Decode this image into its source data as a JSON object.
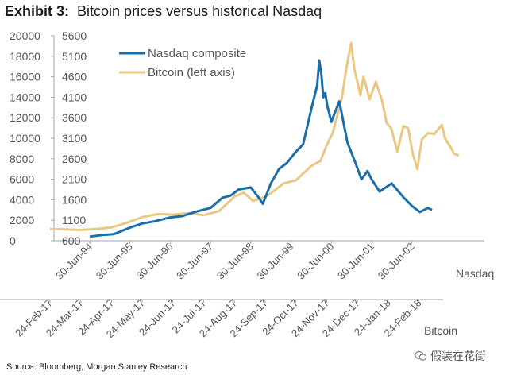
{
  "header": {
    "exhibit_label": "Exhibit 3:",
    "title": "Bitcoin prices versus historical Nasdaq"
  },
  "footer": {
    "source": "Source: Bloomberg, Morgan Stanley Research",
    "watermark": "假装在花街"
  },
  "colors": {
    "nasdaq": "#1b6fa8",
    "bitcoin": "#e8c882",
    "axis": "#a6a6a6",
    "text": "#555555"
  },
  "chart_data": {
    "type": "line",
    "title": "Bitcoin prices versus historical Nasdaq",
    "left_axis": {
      "ticks": [
        0,
        2000,
        4000,
        6000,
        8000,
        10000,
        12000,
        14000,
        16000,
        18000,
        20000
      ],
      "range": [
        0,
        20000
      ],
      "series": "Bitcoin"
    },
    "right_axis": {
      "ticks": [
        600,
        1100,
        1600,
        2100,
        2600,
        3100,
        3600,
        4100,
        4600,
        5100,
        5600
      ],
      "range": [
        600,
        5600
      ],
      "series": "Nasdaq composite"
    },
    "x_axis_top": {
      "label": "Nasdaq",
      "ticks": [
        "30-Jun-94",
        "30-Jun-95",
        "30-Jun-96",
        "30-Jun-97",
        "30-Jun-98",
        "30-Jun-99",
        "30-Jun-00",
        "30-Jun-01",
        "30-Jun-02"
      ]
    },
    "x_axis_bottom": {
      "label": "Bitcoin",
      "ticks": [
        "24-Feb-17",
        "24-Mar-17",
        "24-Apr-17",
        "24-May-17",
        "24-Jun-17",
        "24-Jul-17",
        "24-Aug-17",
        "24-Sep-17",
        "24-Oct-17",
        "24-Nov-17",
        "24-Dec-17",
        "24-Jan-18",
        "24-Feb-18"
      ]
    },
    "legend": {
      "position": "top-left",
      "entries": [
        "Nasdaq composite",
        "Bitcoin (left axis)"
      ]
    },
    "series": [
      {
        "name": "Nasdaq composite",
        "axis": "right",
        "x_unit": "years since 30-Jun-94",
        "x": [
          0,
          0.3,
          0.6,
          1.0,
          1.3,
          1.6,
          2.0,
          2.3,
          2.6,
          3.0,
          3.3,
          3.5,
          3.7,
          4.0,
          4.2,
          4.3,
          4.5,
          4.7,
          4.9,
          5.1,
          5.3,
          5.5,
          5.65,
          5.7,
          5.75,
          5.8,
          5.85,
          5.9,
          6.0,
          6.2,
          6.4,
          6.6,
          6.75,
          6.9,
          7.0,
          7.2,
          7.5,
          7.8,
          8.0,
          8.2,
          8.4,
          8.5
        ],
        "values": [
          700,
          740,
          760,
          920,
          1020,
          1070,
          1170,
          1200,
          1300,
          1400,
          1650,
          1700,
          1850,
          1900,
          1650,
          1500,
          2000,
          2350,
          2500,
          2750,
          2950,
          3800,
          4400,
          5000,
          4700,
          4100,
          4200,
          3900,
          3500,
          4000,
          3000,
          2500,
          2100,
          2300,
          2100,
          1800,
          2000,
          1650,
          1450,
          1300,
          1400,
          1350
        ]
      },
      {
        "name": "Bitcoin (left axis)",
        "axis": "left",
        "x_unit": "months since 24-Feb-17",
        "x": [
          0,
          0.5,
          1.0,
          1.5,
          2.0,
          2.5,
          3.0,
          3.5,
          4.0,
          4.5,
          5.0,
          5.5,
          6.0,
          6.3,
          6.6,
          7.0,
          7.3,
          7.6,
          8.0,
          8.5,
          8.8,
          9.0,
          9.2,
          9.5,
          9.65,
          9.8,
          9.9,
          10.0,
          10.1,
          10.2,
          10.4,
          10.6,
          10.8,
          10.95,
          11.1,
          11.3,
          11.5,
          11.65,
          11.8,
          11.95,
          12.1,
          12.3,
          12.5,
          12.75,
          12.85,
          13.0,
          13.15,
          13.3
        ],
        "values": [
          1150,
          1100,
          1050,
          1150,
          1300,
          1750,
          2300,
          2600,
          2550,
          2700,
          2500,
          2900,
          4300,
          4700,
          3900,
          4250,
          4900,
          5600,
          5900,
          7300,
          7800,
          9300,
          10500,
          14000,
          17000,
          19300,
          16800,
          15500,
          14200,
          16000,
          13800,
          15500,
          13700,
          11500,
          11000,
          8700,
          11200,
          11000,
          8500,
          7000,
          9900,
          10500,
          10400,
          11300,
          10000,
          9300,
          8500,
          8300
        ]
      }
    ]
  }
}
